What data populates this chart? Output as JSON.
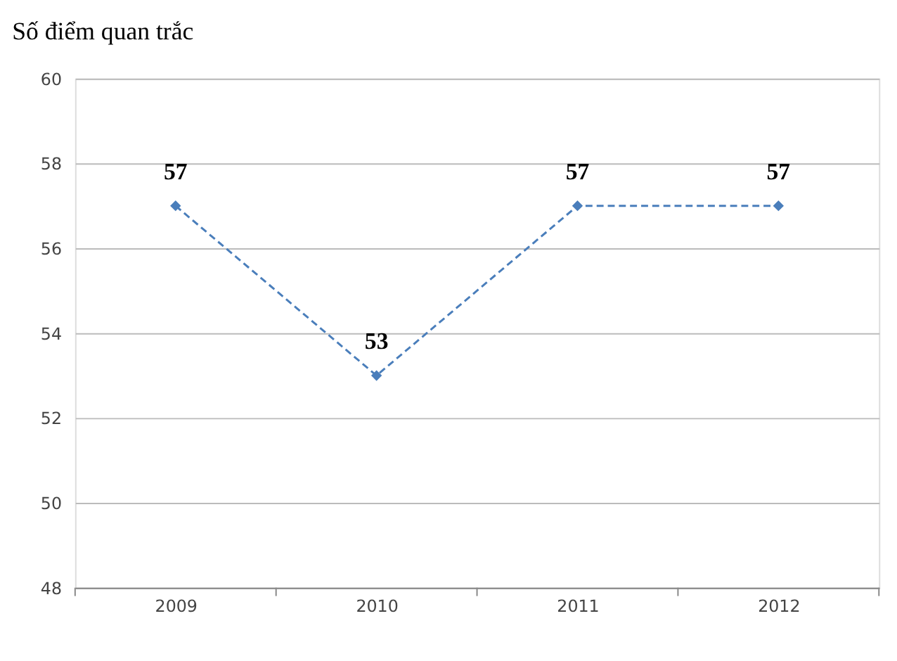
{
  "chart_data": {
    "type": "line",
    "title": "Số điểm quan trắc",
    "categories": [
      "2009",
      "2010",
      "2011",
      "2012"
    ],
    "series": [
      {
        "color": "#4a7ebb",
        "values": [
          57,
          53,
          57,
          57
        ]
      }
    ],
    "ylim": [
      48,
      60
    ],
    "yticks": [
      48,
      50,
      52,
      54,
      56,
      58,
      60
    ],
    "grid": "y",
    "marker": "diamond",
    "line_style": "dashed",
    "data_labels": true
  }
}
